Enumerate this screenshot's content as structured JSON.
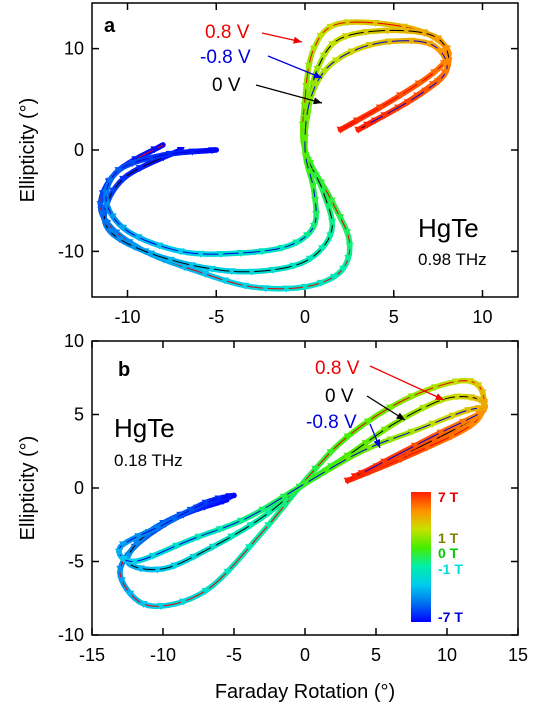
{
  "chart_data": [
    {
      "panel": "a",
      "type": "scatter",
      "material": "HgTe",
      "frequency": "0.98 THz",
      "xlabel": "",
      "ylabel": "Ellipticity (°)",
      "xlim": [
        -12,
        12
      ],
      "ylim": [
        -14.5,
        14.5
      ],
      "xticks": [
        -10,
        -5,
        0,
        5,
        10
      ],
      "yticks": [
        -10,
        0,
        10
      ],
      "annotations": [
        {
          "text": "0.8 V",
          "color": "#ee0000"
        },
        {
          "text": "-0.8 V",
          "color": "#0000dd"
        },
        {
          "text": "0 V",
          "color": "#000000"
        }
      ],
      "series": [
        {
          "gate": "0.8 V",
          "line_color": "#ee0000",
          "x": [
            2,
            5,
            7.5,
            8,
            6,
            2,
            0.5,
            0,
            0,
            1.5,
            2.5,
            2,
            0,
            -3,
            -6,
            -9,
            -11,
            -11.5,
            -10.5,
            -8
          ],
          "y": [
            2,
            5,
            8,
            10,
            12,
            12.5,
            10,
            5,
            0,
            -5,
            -9,
            -12,
            -13.5,
            -13.5,
            -12,
            -10,
            -7.5,
            -5,
            -2,
            0.5
          ]
        },
        {
          "gate": "0 V",
          "line_color": "#000000",
          "x": [
            3,
            6,
            8,
            7.5,
            5,
            2,
            0.7,
            0.2,
            0,
            1,
            1.5,
            0,
            -3,
            -6,
            -9,
            -11,
            -11.2,
            -10,
            -7
          ],
          "y": [
            2,
            5,
            8,
            11,
            11.8,
            11,
            8,
            4,
            0,
            -4,
            -8,
            -11,
            -12,
            -11.5,
            -10,
            -8,
            -5.5,
            -2.5,
            0
          ]
        },
        {
          "gate": "-0.8 V",
          "line_color": "#0000dd",
          "x": [
            3.5,
            6.5,
            8,
            7,
            4,
            1.5,
            0.3,
            0,
            0.5,
            0.5,
            -1,
            -4,
            -7,
            -10,
            -11.2,
            -10.5,
            -8,
            -5
          ],
          "y": [
            2.5,
            5.5,
            8,
            10.5,
            10.5,
            8.5,
            5,
            0,
            -4,
            -7.5,
            -9.5,
            -10.2,
            -10,
            -8,
            -5,
            -2,
            -0.5,
            0
          ]
        }
      ]
    },
    {
      "panel": "b",
      "type": "scatter",
      "material": "HgTe",
      "frequency": "0.18 THz",
      "xlabel": "Faraday Rotation (°)",
      "ylabel": "Ellipticity (°)",
      "xlim": [
        -15,
        15
      ],
      "ylim": [
        -10,
        10
      ],
      "xticks": [
        -15,
        -10,
        -5,
        0,
        5,
        10,
        15
      ],
      "yticks": [
        -10,
        -5,
        0,
        5,
        10
      ],
      "annotations": [
        {
          "text": "0.8 V",
          "color": "#ee0000"
        },
        {
          "text": "0 V",
          "color": "#000000"
        },
        {
          "text": "-0.8 V",
          "color": "#0000dd"
        }
      ],
      "colorbar": {
        "labels": [
          {
            "text": "7 T",
            "color": "#ee0000"
          },
          {
            "text": "1 T",
            "color": "#808000"
          },
          {
            "text": "0 T",
            "color": "#00cc00"
          },
          {
            "text": "-1 T",
            "color": "#00dddd"
          },
          {
            "text": "-7 T",
            "color": "#0000dd"
          }
        ],
        "stops": [
          "#ff2000",
          "#ff9000",
          "#c8e000",
          "#44ee00",
          "#00eeaa",
          "#00ccee",
          "#0070f0",
          "#0000ff"
        ]
      },
      "series": [
        {
          "gate": "0.8 V",
          "line_color": "#ee0000",
          "x": [
            3,
            8,
            12,
            12.5,
            11,
            7,
            3,
            0,
            -3,
            -7,
            -11,
            -13,
            -12,
            -9,
            -5.5
          ],
          "y": [
            0.5,
            2.5,
            4.5,
            6.5,
            7.3,
            6,
            3.5,
            0.5,
            -3,
            -7,
            -8,
            -6,
            -4,
            -2,
            -0.8
          ]
        },
        {
          "gate": "0 V",
          "line_color": "#000000",
          "x": [
            3.5,
            8.5,
            12.3,
            12.3,
            10,
            6.5,
            3,
            0,
            -3,
            -6.5,
            -10,
            -12.5,
            -11,
            -8,
            -5
          ],
          "y": [
            0.8,
            3,
            5,
            6,
            6.1,
            4.5,
            2.2,
            0.3,
            -2,
            -4,
            -5.5,
            -5,
            -3,
            -1.5,
            -0.5
          ]
        },
        {
          "gate": "-0.8 V",
          "line_color": "#0000dd",
          "x": [
            4,
            9,
            12.5,
            11.5,
            8,
            4,
            0,
            -4,
            -8,
            -12,
            -13,
            -10,
            -7,
            -5
          ],
          "y": [
            1,
            3.5,
            5.2,
            5.3,
            4,
            2.5,
            0.3,
            -2,
            -3.5,
            -5,
            -4,
            -2.5,
            -1,
            -0.5
          ]
        }
      ]
    }
  ]
}
